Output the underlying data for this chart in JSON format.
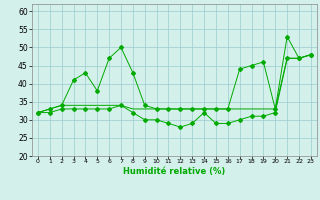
{
  "xlabel": "Humidité relative (%)",
  "x": [
    0,
    1,
    2,
    3,
    4,
    5,
    6,
    7,
    8,
    9,
    10,
    11,
    12,
    13,
    14,
    15,
    16,
    17,
    18,
    19,
    20,
    21,
    22,
    23
  ],
  "y_min": [
    32,
    32,
    33,
    33,
    33,
    33,
    33,
    34,
    32,
    30,
    30,
    29,
    28,
    29,
    32,
    29,
    29,
    30,
    31,
    31,
    32,
    47,
    47,
    48
  ],
  "y_mean": [
    32,
    33,
    34,
    34,
    34,
    34,
    34,
    34,
    33,
    33,
    33,
    33,
    33,
    33,
    33,
    33,
    33,
    33,
    33,
    33,
    33,
    47,
    47,
    48
  ],
  "y_max": [
    32,
    33,
    34,
    41,
    43,
    38,
    47,
    50,
    43,
    34,
    33,
    33,
    33,
    33,
    33,
    33,
    33,
    44,
    45,
    46,
    33,
    53,
    47,
    48
  ],
  "line_color": "#00aa00",
  "bg_color": "#d4f0eb",
  "grid_color": "#99cccc",
  "ylim": [
    20,
    62
  ],
  "xlim": [
    -0.5,
    23.5
  ],
  "yticks": [
    20,
    25,
    30,
    35,
    40,
    45,
    50,
    55,
    60
  ],
  "xticks": [
    0,
    1,
    2,
    3,
    4,
    5,
    6,
    7,
    8,
    9,
    10,
    11,
    12,
    13,
    14,
    15,
    16,
    17,
    18,
    19,
    20,
    21,
    22,
    23
  ]
}
